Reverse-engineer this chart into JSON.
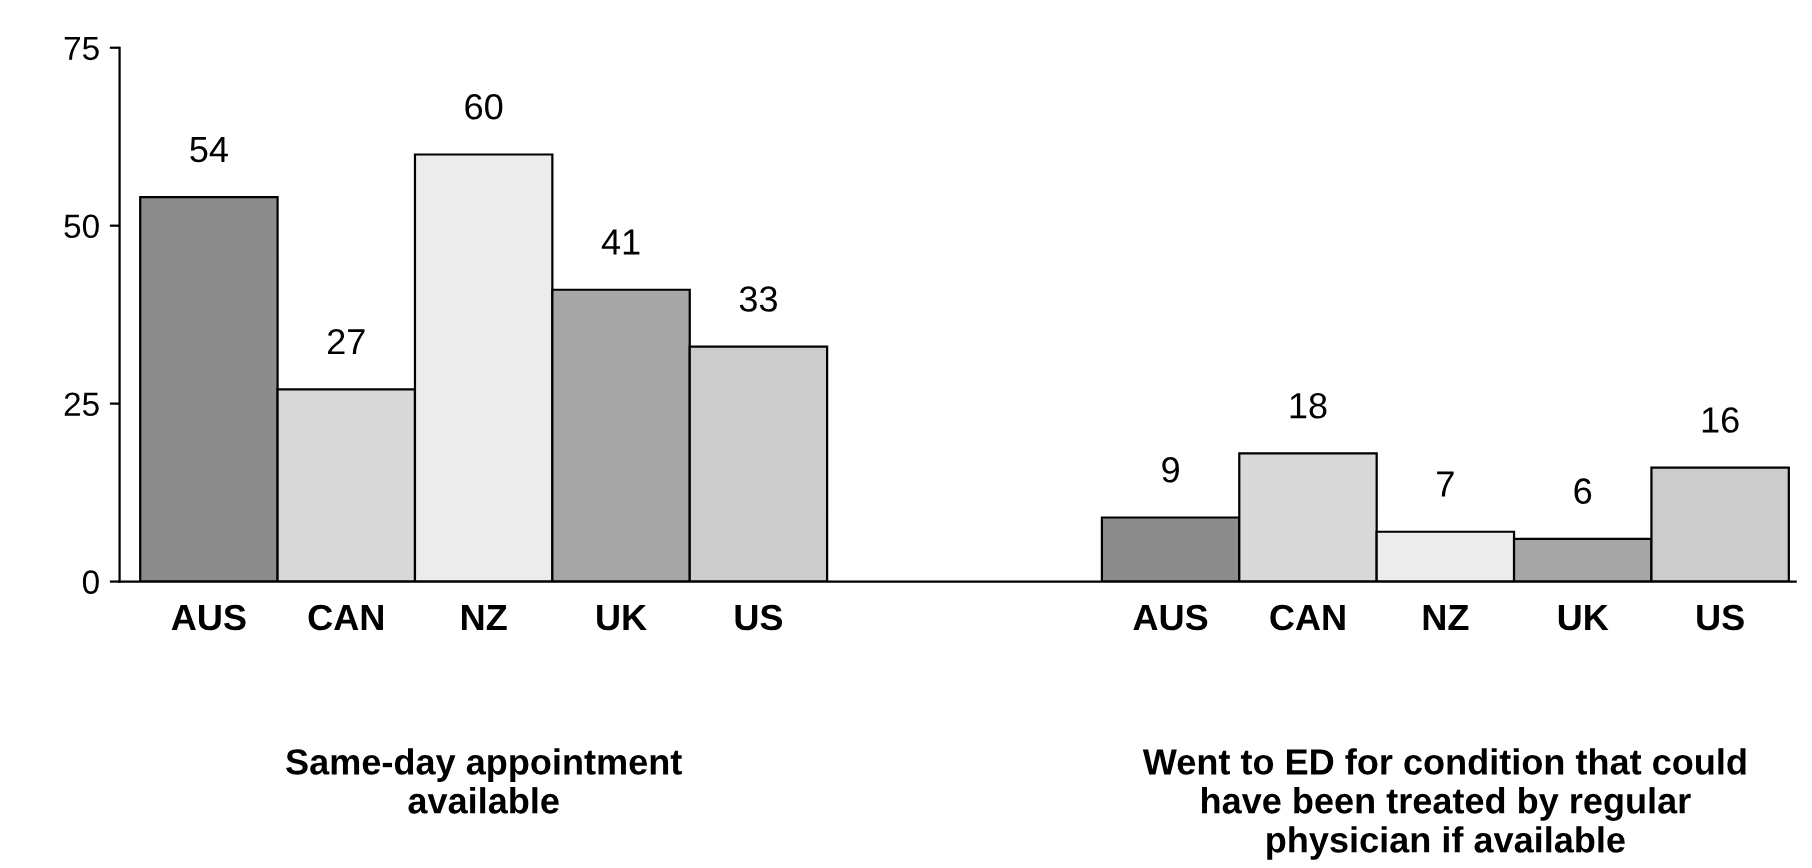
{
  "chart_data": {
    "type": "bar",
    "categories": [
      "AUS",
      "CAN",
      "NZ",
      "UK",
      "US",
      null,
      null,
      "AUS",
      "CAN",
      "NZ",
      "UK",
      "US"
    ],
    "values": [
      54,
      27,
      60,
      41,
      33,
      null,
      null,
      9,
      18,
      7,
      6,
      16
    ],
    "colors": [
      "#8c8c8c",
      "#d9d9d9",
      "#ececec",
      "#a6a6a6",
      "#cccccc",
      null,
      null,
      "#8c8c8c",
      "#d9d9d9",
      "#ececec",
      "#a6a6a6",
      "#cccccc"
    ],
    "ylim": [
      0,
      75
    ],
    "yticks": [
      0,
      25,
      50,
      75
    ],
    "grid": false,
    "data_labels": true,
    "annotations": [
      "Same-day appointment\navailable",
      "Went to ED for condition that could\nhave been treated by regular\nphysician if available"
    ]
  }
}
